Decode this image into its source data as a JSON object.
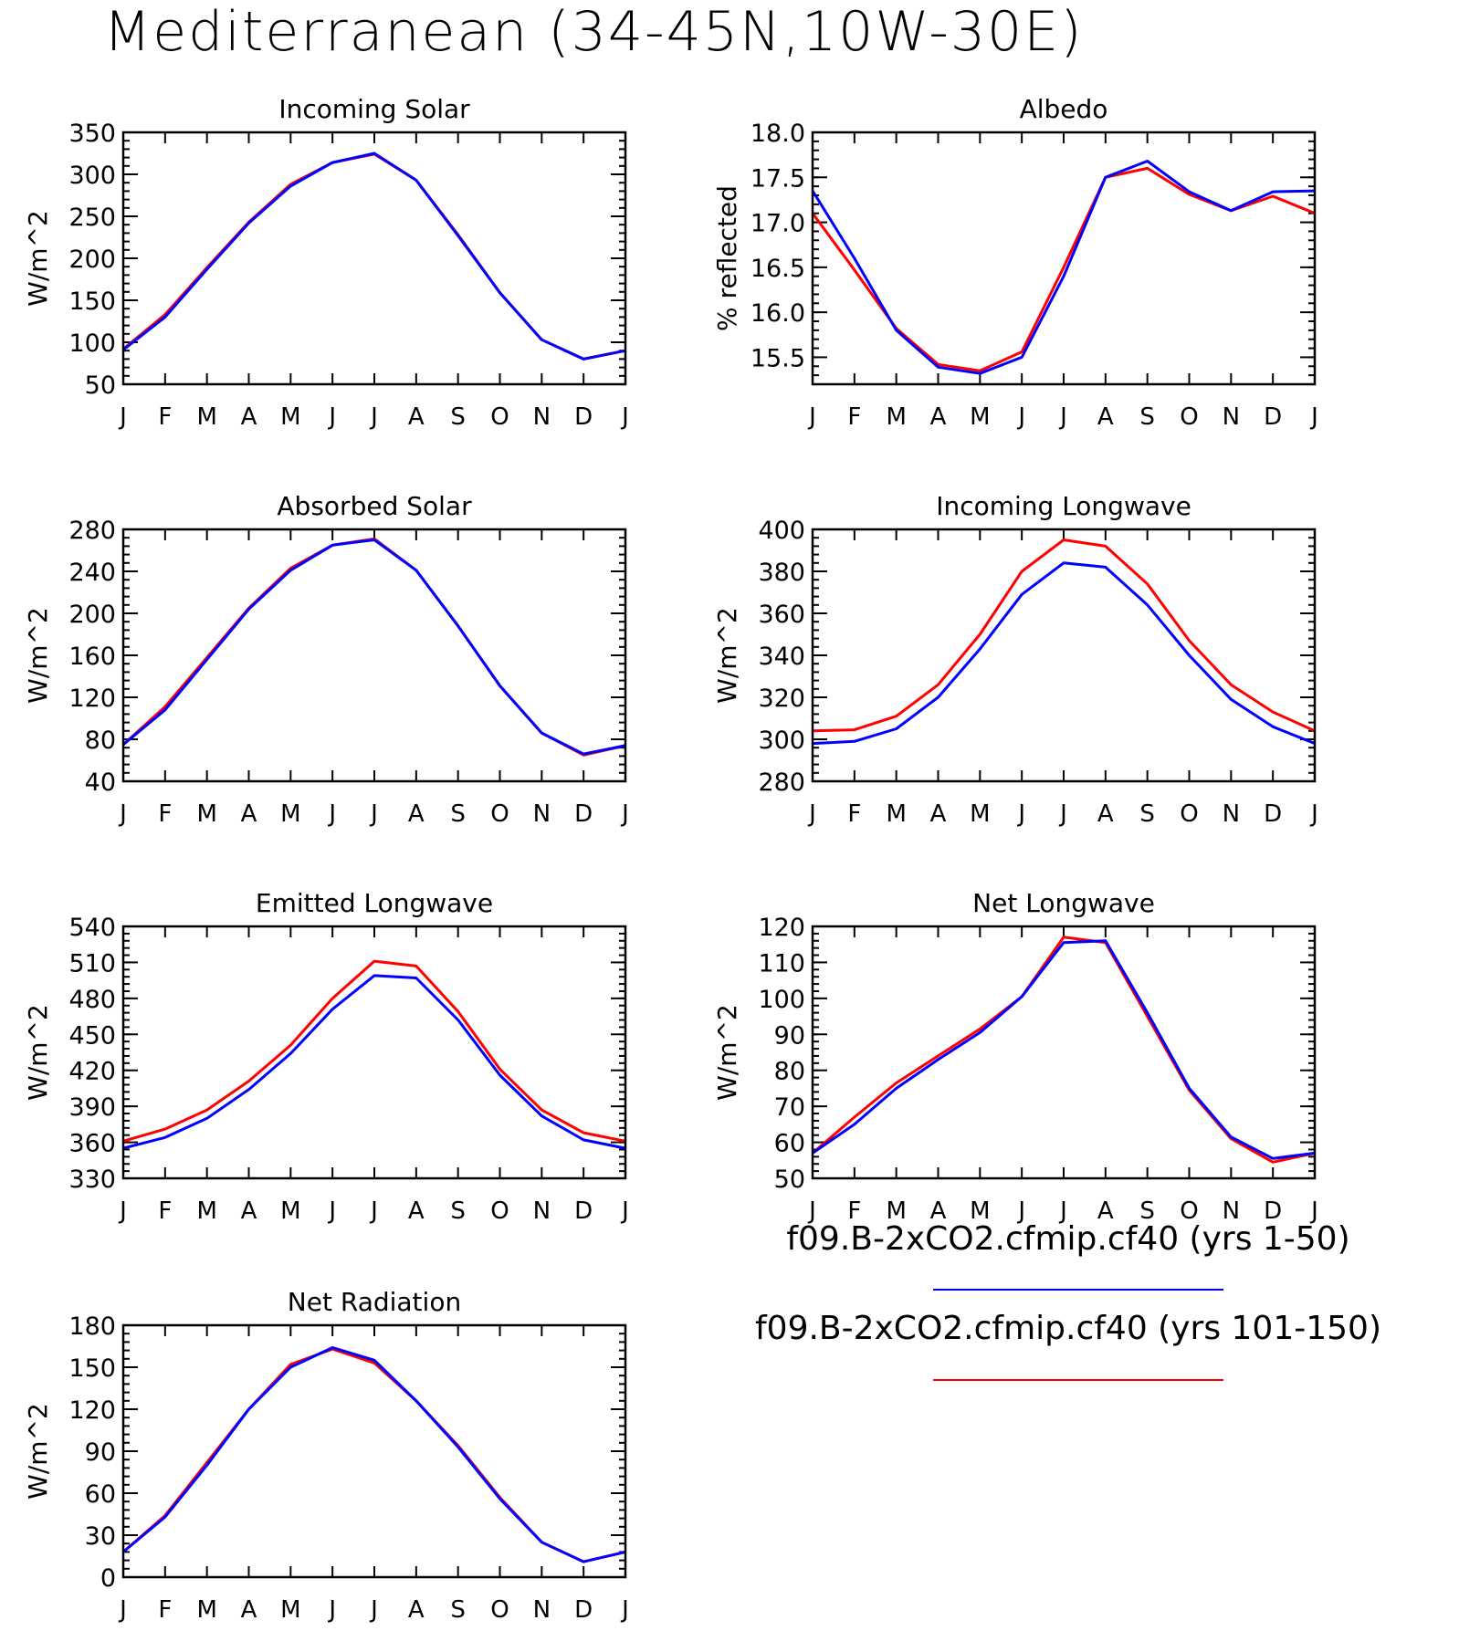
{
  "title": "Mediterranean (34-45N,10W-30E)",
  "colors": {
    "series1": "#0000ff",
    "series2": "#ff0000"
  },
  "legend": [
    {
      "label": "f09.B-2xCO2.cfmip.cf40 (yrs 1-50)",
      "color": "#0000ff"
    },
    {
      "label": "f09.B-2xCO2.cfmip.cf40 (yrs 101-150)",
      "color": "#ff0000"
    }
  ],
  "chart_data": [
    {
      "id": "incoming-solar",
      "type": "line",
      "title": "Incoming Solar",
      "ylabel": "W/m^2",
      "categories": [
        "J",
        "F",
        "M",
        "A",
        "M",
        "J",
        "J",
        "A",
        "S",
        "O",
        "N",
        "D",
        "J"
      ],
      "ylim": [
        50,
        350
      ],
      "yticks": [
        "50",
        "100",
        "150",
        "200",
        "250",
        "300",
        "350"
      ],
      "series": [
        {
          "name": "f09.B-2xCO2.cfmip.cf40 (yrs 1-50)",
          "color": "#0000ff",
          "values": [
            91,
            130,
            187,
            242,
            286,
            314,
            325,
            293,
            227,
            159,
            103,
            80,
            90
          ]
        },
        {
          "name": "f09.B-2xCO2.cfmip.cf40 (yrs 101-150)",
          "color": "#ff0000",
          "values": [
            92,
            133,
            189,
            243,
            288,
            314,
            324,
            293,
            228,
            159,
            103,
            80,
            90
          ]
        }
      ]
    },
    {
      "id": "albedo",
      "type": "line",
      "title": "Albedo",
      "ylabel": "% reflected",
      "categories": [
        "J",
        "F",
        "M",
        "A",
        "M",
        "J",
        "J",
        "A",
        "S",
        "O",
        "N",
        "D",
        "J"
      ],
      "ylim": [
        15.2,
        18.0
      ],
      "yticks": [
        "15.5",
        "16.0",
        "16.5",
        "17.0",
        "17.5",
        "18.0"
      ],
      "series": [
        {
          "name": "f09.B-2xCO2.cfmip.cf40 (yrs 1-50)",
          "color": "#0000ff",
          "values": [
            17.35,
            16.6,
            15.8,
            15.39,
            15.32,
            15.5,
            16.4,
            17.5,
            17.68,
            17.34,
            17.13,
            17.34,
            17.35
          ]
        },
        {
          "name": "f09.B-2xCO2.cfmip.cf40 (yrs 101-150)",
          "color": "#ff0000",
          "values": [
            17.1,
            16.47,
            15.82,
            15.42,
            15.35,
            15.56,
            16.5,
            17.5,
            17.6,
            17.31,
            17.13,
            17.29,
            17.1
          ]
        }
      ]
    },
    {
      "id": "absorbed-solar",
      "type": "line",
      "title": "Absorbed Solar",
      "ylabel": "W/m^2",
      "categories": [
        "J",
        "F",
        "M",
        "A",
        "M",
        "J",
        "J",
        "A",
        "S",
        "O",
        "N",
        "D",
        "J"
      ],
      "ylim": [
        40,
        280
      ],
      "yticks": [
        "40",
        "80",
        "120",
        "160",
        "200",
        "240",
        "280"
      ],
      "series": [
        {
          "name": "f09.B-2xCO2.cfmip.cf40 (yrs 1-50)",
          "color": "#0000ff",
          "values": [
            75,
            108,
            156,
            204,
            241,
            265,
            270,
            241,
            188,
            131,
            86,
            66,
            74
          ]
        },
        {
          "name": "f09.B-2xCO2.cfmip.cf40 (yrs 101-150)",
          "color": "#ff0000",
          "values": [
            75,
            111,
            158,
            205,
            243,
            265,
            271,
            241,
            188,
            131,
            86,
            65,
            74
          ]
        }
      ]
    },
    {
      "id": "incoming-longwave",
      "type": "line",
      "title": "Incoming Longwave",
      "ylabel": "W/m^2",
      "categories": [
        "J",
        "F",
        "M",
        "A",
        "M",
        "J",
        "J",
        "A",
        "S",
        "O",
        "N",
        "D",
        "J"
      ],
      "ylim": [
        280,
        400
      ],
      "yticks": [
        "280",
        "300",
        "320",
        "340",
        "360",
        "380",
        "400"
      ],
      "series": [
        {
          "name": "f09.B-2xCO2.cfmip.cf40 (yrs 1-50)",
          "color": "#0000ff",
          "values": [
            298,
            299,
            305,
            320,
            343,
            369,
            384,
            382,
            364,
            340,
            319,
            306,
            298
          ]
        },
        {
          "name": "f09.B-2xCO2.cfmip.cf40 (yrs 101-150)",
          "color": "#ff0000",
          "values": [
            304,
            304.5,
            311,
            326,
            350,
            380,
            395,
            392,
            374,
            347,
            326,
            313,
            304
          ]
        }
      ]
    },
    {
      "id": "emitted-longwave",
      "type": "line",
      "title": "Emitted Longwave",
      "ylabel": "W/m^2",
      "categories": [
        "J",
        "F",
        "M",
        "A",
        "M",
        "J",
        "J",
        "A",
        "S",
        "O",
        "N",
        "D",
        "J"
      ],
      "ylim": [
        330,
        540
      ],
      "yticks": [
        "330",
        "360",
        "390",
        "420",
        "450",
        "480",
        "510",
        "540"
      ],
      "series": [
        {
          "name": "f09.B-2xCO2.cfmip.cf40 (yrs 1-50)",
          "color": "#0000ff",
          "values": [
            355,
            364,
            380,
            404,
            434,
            471,
            499,
            497,
            462,
            416,
            382,
            362,
            355
          ]
        },
        {
          "name": "f09.B-2xCO2.cfmip.cf40 (yrs 101-150)",
          "color": "#ff0000",
          "values": [
            361,
            371,
            387,
            411,
            441,
            480,
            511,
            507,
            469,
            421,
            387,
            368,
            361
          ]
        }
      ]
    },
    {
      "id": "net-longwave",
      "type": "line",
      "title": "Net Longwave",
      "ylabel": "W/m^2",
      "categories": [
        "J",
        "F",
        "M",
        "A",
        "M",
        "J",
        "J",
        "A",
        "S",
        "O",
        "N",
        "D",
        "J"
      ],
      "ylim": [
        50,
        120
      ],
      "yticks": [
        "50",
        "60",
        "70",
        "80",
        "90",
        "100",
        "110",
        "120"
      ],
      "series": [
        {
          "name": "f09.B-2xCO2.cfmip.cf40 (yrs 1-50)",
          "color": "#0000ff",
          "values": [
            57,
            65,
            75,
            83,
            90.5,
            100.5,
            115.5,
            116,
            96,
            75,
            61.5,
            55.5,
            57
          ]
        },
        {
          "name": "f09.B-2xCO2.cfmip.cf40 (yrs 101-150)",
          "color": "#ff0000",
          "values": [
            57,
            67,
            76.5,
            84,
            91.5,
            100.5,
            117,
            115.5,
            95,
            74.5,
            61,
            54.5,
            57
          ]
        }
      ]
    },
    {
      "id": "net-radiation",
      "type": "line",
      "title": "Net Radiation",
      "ylabel": "W/m^2",
      "categories": [
        "J",
        "F",
        "M",
        "A",
        "M",
        "J",
        "J",
        "A",
        "S",
        "O",
        "N",
        "D",
        "J"
      ],
      "ylim": [
        0,
        180
      ],
      "yticks": [
        "0",
        "30",
        "60",
        "90",
        "120",
        "150",
        "180"
      ],
      "series": [
        {
          "name": "f09.B-2xCO2.cfmip.cf40 (yrs 1-50)",
          "color": "#0000ff",
          "values": [
            18,
            43,
            80,
            120,
            150,
            164,
            155,
            126,
            93,
            56,
            25,
            11,
            18
          ]
        },
        {
          "name": "f09.B-2xCO2.cfmip.cf40 (yrs 101-150)",
          "color": "#ff0000",
          "values": [
            18,
            44,
            82,
            120,
            152,
            163,
            153,
            126,
            94,
            57,
            25,
            11,
            18
          ]
        }
      ]
    }
  ]
}
